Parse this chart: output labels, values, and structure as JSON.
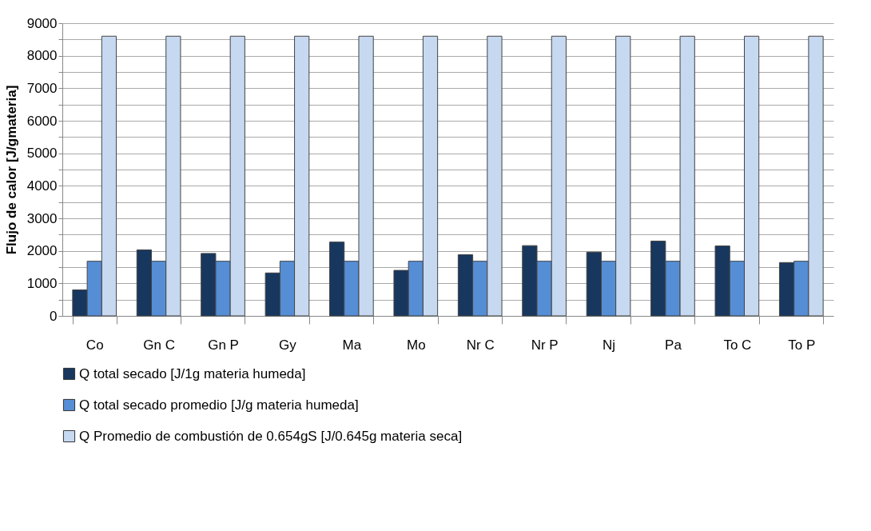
{
  "chart_data": {
    "type": "bar",
    "ylabel": "Flujo de calor [J/gmateria]",
    "categories": [
      "Co",
      "Gn C",
      "Gn P",
      "Gy",
      "Ma",
      "Mo",
      "Nr C",
      "Nr P",
      "Nj",
      "Pa",
      "To C",
      "To P"
    ],
    "series": [
      {
        "name": "Q total secado [J/1g materia humeda]",
        "color": "#17375e",
        "values": [
          800,
          2030,
          1920,
          1320,
          2270,
          1400,
          1880,
          2160,
          1960,
          2300,
          2150,
          1640
        ]
      },
      {
        "name": "Q total secado promedio [J/g materia humeda]",
        "color": "#558ed5",
        "values": [
          1680,
          1680,
          1680,
          1680,
          1680,
          1680,
          1680,
          1680,
          1680,
          1680,
          1680,
          1680
        ]
      },
      {
        "name": "Q Promedio de combustión de 0.654gS [J/0.645g materia seca]",
        "color": "#c6d9f1",
        "values": [
          8600,
          8600,
          8600,
          8600,
          8600,
          8600,
          8600,
          8600,
          8600,
          8600,
          8600,
          8600
        ]
      }
    ],
    "ylim": [
      0,
      9000
    ],
    "yticks": [
      0,
      {
        "value": 500,
        "label": null
      },
      1000,
      {
        "value": 1500,
        "label": null
      },
      2000,
      {
        "value": 2500,
        "label": null
      },
      3000,
      {
        "value": 3500,
        "label": null
      },
      4000,
      {
        "value": 4500,
        "label": null
      },
      5000,
      {
        "value": 5500,
        "label": null
      },
      6000,
      {
        "value": 6500,
        "label": null
      },
      7000,
      {
        "value": 7500,
        "label": null
      },
      8000,
      {
        "value": 8500,
        "label": null
      },
      9000
    ],
    "grid": "y",
    "legend": "bottom"
  }
}
